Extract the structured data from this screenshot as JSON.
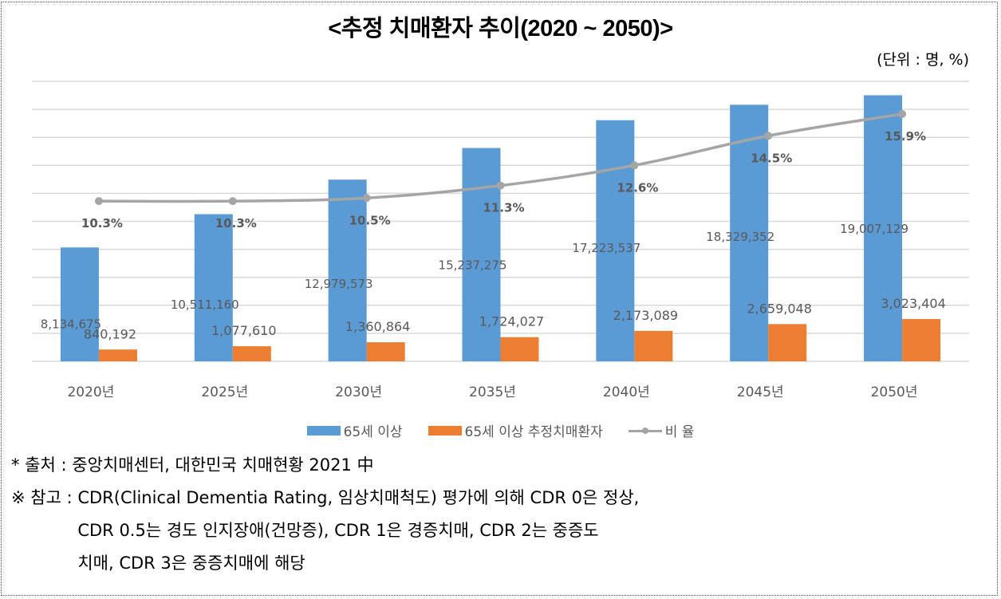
{
  "title": "<추정 치매환자 추이(2020 ~ 2050)>",
  "unit_label": "(단위 : 명, %)",
  "colors": {
    "series_65plus": "#5B9BD5",
    "series_dementia": "#ED7D31",
    "series_ratio": "#A5A5A5",
    "gridline": "#D9D9D9",
    "label_text": "#595959"
  },
  "chart_data": {
    "type": "bar",
    "title": "<추정 치매환자 추이(2020 ~ 2050)>",
    "categories": [
      "2020년",
      "2025년",
      "2030년",
      "2035년",
      "2040년",
      "2045년",
      "2050년"
    ],
    "series": [
      {
        "name": "65세 이상",
        "type": "bar",
        "axis": "primary",
        "values": [
          8134675,
          10511160,
          12979573,
          15237275,
          17223537,
          18329352,
          19007129
        ],
        "labels": [
          "8,134,675",
          "10,511,160",
          "12,979,573",
          "15,237,275",
          "17,223,537",
          "18,329,352",
          "19,007,129"
        ]
      },
      {
        "name": "65세 이상 추정치매환자",
        "type": "bar",
        "axis": "primary",
        "values": [
          840192,
          1077610,
          1360864,
          1724027,
          2173089,
          2659048,
          3023404
        ],
        "labels": [
          "840,192",
          "1,077,610",
          "1,360,864",
          "1,724,027",
          "2,173,089",
          "2,659,048",
          "3,023,404"
        ]
      },
      {
        "name": "비 율",
        "type": "line",
        "axis": "secondary",
        "values": [
          10.3,
          10.3,
          10.5,
          11.3,
          12.6,
          14.5,
          15.9
        ],
        "labels": [
          "10.3%",
          "10.3%",
          "10.5%",
          "11.3%",
          "12.6%",
          "14.5%",
          "15.9%"
        ]
      }
    ],
    "ylim": [
      0,
      20000000
    ],
    "y2lim": [
      0,
      18
    ],
    "grid": true,
    "gridline_count": 11,
    "axis_tick_labels_shown": false,
    "legend_position": "bottom"
  },
  "legend": [
    {
      "label": "65세 이상"
    },
    {
      "label": "65세 이상 추정치매환자"
    },
    {
      "label": "비 율"
    }
  ],
  "notes": {
    "source_prefix": "* 출처 : ",
    "source_text": "중앙치매센터, 대한민국 치매현황 2021 中",
    "ref_prefix": "※ 참고 : ",
    "ref_lines": [
      "CDR(Clinical Dementia Rating, 임상치매척도) 평가에 의해 CDR 0은 정상,",
      "CDR 0.5는 경도 인지장애(건망증), CDR 1은 경증치매, CDR 2는 중증도",
      "치매, CDR 3은 중증치매에 해당"
    ]
  }
}
